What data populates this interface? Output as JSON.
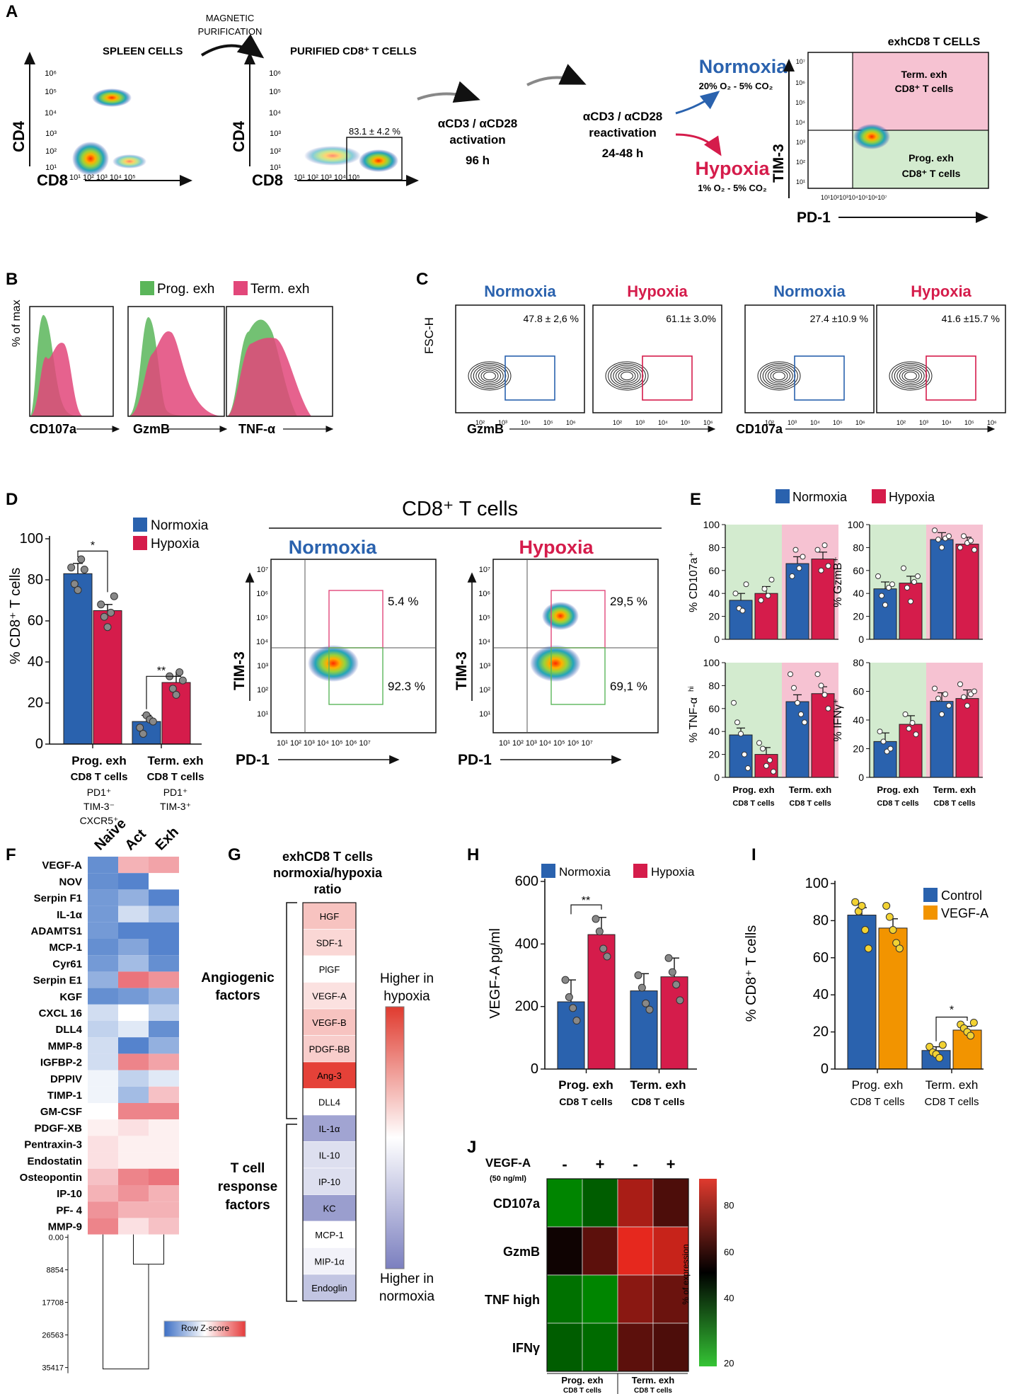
{
  "colors": {
    "normoxia": "#2a62ae",
    "hypoxia": "#d51c4b",
    "control": "#2a62ae",
    "vegfa": "#f29400",
    "prog_bg": "#d3ebcf",
    "term_bg": "#f6c2d2",
    "green": "#5bb65a",
    "pink": "#e2477a"
  },
  "panelA": {
    "letter": "A",
    "spleen_title": "SPLEEN CELLS",
    "arrow1": [
      "MAGNETIC",
      "PURIFICATION"
    ],
    "purified_title": "PURIFIED CD8⁺ T CELLS",
    "gate_pct": "83.1 ± 4.2 %",
    "x_axis": "CD8",
    "y_axis": "CD4",
    "ticks_x": "10¹ 10² 10³ 10⁴ 10⁵",
    "ticks_y": [
      "10⁶",
      "10⁵",
      "10⁴",
      "10³",
      "10²",
      "10¹"
    ],
    "step1": [
      "αCD3 / αCD28",
      "activation",
      "96 h"
    ],
    "step2": [
      "αCD3 / αCD28",
      "reactivation",
      "24-48 h"
    ],
    "normoxia": "Normoxia",
    "normoxia_cond": "20% O₂ - 5% CO₂",
    "hypoxia": "Hypoxia",
    "hypoxia_cond": "1% O₂ - 5% CO₂",
    "exh_title": "exhCD8 T CELLS",
    "term_label": [
      "Term. exh",
      "CD8⁺ T cells"
    ],
    "prog_label": [
      "Prog. exh",
      "CD8⁺ T cells"
    ],
    "exh_y": "TIM-3",
    "exh_x": "PD-1",
    "exh_ticks_y": [
      "10⁷",
      "10⁶",
      "10⁵",
      "10⁴",
      "10³",
      "10²",
      "10¹"
    ],
    "exh_ticks_x": "10¹10²10³10⁴10⁵10⁶10⁷"
  },
  "panelB": {
    "letter": "B",
    "legend": [
      "Prog. exh",
      "Term. exh"
    ],
    "y_axis": "% of max",
    "markers": [
      "CD107a",
      "GzmB",
      "TNF-α"
    ]
  },
  "panelC": {
    "letter": "C",
    "plots": [
      {
        "condition": "Normoxia",
        "pct": "47.8 ± 2,6 %"
      },
      {
        "condition": "Hypoxia",
        "pct": "61.1± 3.0%"
      },
      {
        "condition": "Normoxia",
        "pct": "27.4 ±10.9 %"
      },
      {
        "condition": "Hypoxia",
        "pct": "41.6 ±15.7 %"
      }
    ],
    "y_axis": "FSC-H",
    "x_left": "GzmB",
    "x_right": "CD107a",
    "ticks": [
      "10²",
      "10³",
      "10⁴",
      "10⁵",
      "10⁶"
    ]
  },
  "panelD": {
    "letter": "D",
    "legend": [
      "Normoxia",
      "Hypoxia"
    ],
    "y_axis": "% CD8⁺ T cells",
    "y_ticks": [
      "100",
      "80",
      "60",
      "40",
      "20",
      "0"
    ],
    "chart_data": {
      "type": "bar",
      "categories": [
        "Prog. exh",
        "Term. exh"
      ],
      "ylim": [
        0,
        100
      ],
      "series": [
        {
          "name": "Normoxia",
          "values": [
            83,
            11
          ],
          "points": [
            [
              86,
              78,
              75,
              90,
              85
            ],
            [
              8,
              5,
              14,
              12,
              11
            ]
          ]
        },
        {
          "name": "Hypoxia",
          "values": [
            65,
            30
          ],
          "points": [
            [
              68,
              62,
              57,
              64,
              72
            ],
            [
              33,
              27,
              24,
              35,
              31
            ]
          ]
        }
      ],
      "significance": [
        "*",
        "**"
      ]
    },
    "cat_labels": [
      {
        "name": "Prog. exh",
        "sub": "CD8 T cells",
        "pheno": [
          "PD1⁺",
          "TIM-3⁻",
          "CXCR5⁺"
        ]
      },
      {
        "name": "Term. exh",
        "sub": "CD8 T cells",
        "pheno": [
          "PD1⁺",
          "TIM-3⁺"
        ]
      }
    ],
    "flow_title": "CD8⁺ T cells",
    "flow_norm": "Normoxia",
    "flow_hyp": "Hypoxia",
    "norm_term": "5.4 %",
    "norm_prog": "92.3 %",
    "hyp_term": "29,5 %",
    "hyp_prog": "69,1 %",
    "flow_y": "TIM-3",
    "flow_x": "PD-1",
    "flow_ticks_y": [
      "10⁷",
      "10⁶",
      "10⁵",
      "10⁴",
      "10³",
      "10²",
      "10¹"
    ],
    "flow_ticks_x": "10¹ 10² 10³ 10⁴ 10⁵ 10⁶ 10⁷"
  },
  "panelE": {
    "letter": "E",
    "legend": [
      "Normoxia",
      "Hypoxia"
    ],
    "charts": [
      {
        "ylabel": "% CD107a⁺",
        "ylim": [
          0,
          100
        ],
        "values": [
          34,
          40,
          66,
          70
        ],
        "points": [
          [
            40,
            27,
            25,
            48
          ],
          [
            34,
            44,
            38,
            52
          ],
          [
            55,
            78,
            62,
            72
          ],
          [
            78,
            60,
            82,
            64
          ]
        ]
      },
      {
        "ylabel": "% GzmB⁺",
        "ylim": [
          0,
          100
        ],
        "values": [
          44,
          49,
          87,
          83
        ],
        "points": [
          [
            55,
            38,
            30,
            45,
            48
          ],
          [
            62,
            45,
            33,
            50,
            55
          ],
          [
            95,
            87,
            80,
            88,
            90
          ],
          [
            80,
            90,
            84,
            86,
            78
          ]
        ]
      },
      {
        "ylabel": "% TNF-α^hi",
        "ylim": [
          0,
          100
        ],
        "values": [
          37,
          20,
          66,
          73
        ],
        "points": [
          [
            65,
            48,
            38,
            20,
            8
          ],
          [
            30,
            25,
            10,
            15,
            5
          ],
          [
            90,
            78,
            65,
            55,
            48
          ],
          [
            90,
            80,
            72,
            60
          ]
        ]
      },
      {
        "ylabel": "% IFNγ⁺",
        "ylim": [
          0,
          80
        ],
        "values": [
          25,
          37,
          53,
          55
        ],
        "points": [
          [
            32,
            25,
            18,
            20
          ],
          [
            44,
            34,
            38,
            30
          ],
          [
            62,
            55,
            44,
            58,
            50
          ],
          [
            65,
            56,
            50,
            58,
            60
          ]
        ]
      }
    ],
    "cats": [
      "Prog. exh",
      "Term. exh"
    ],
    "cat_sub": "CD8 T cells"
  },
  "panelF": {
    "letter": "F",
    "columns": [
      "Naive",
      "Act",
      "Exh"
    ],
    "rows": [
      "VEGF-A",
      "NOV",
      "Serpin F1",
      "IL-1α",
      "ADAMTS1",
      "MCP-1",
      "Cyr61",
      "Serpin E1",
      "KGF",
      "CXCL 16",
      "DLL4",
      "MMP-8",
      "IGFBP-2",
      "DPPIV",
      "TIMP-1",
      "GM-CSF",
      "PDGF-XB",
      "Pentraxin-3",
      "Endostatin",
      "Osteopontin",
      "IP-10",
      "PF- 4",
      "MMP-9"
    ],
    "values": [
      [
        -1.0,
        0.5,
        0.6
      ],
      [
        -1.0,
        -1.1,
        0.0
      ],
      [
        -0.9,
        -0.7,
        -1.1
      ],
      [
        -0.9,
        -0.3,
        -0.6
      ],
      [
        -0.9,
        -1.1,
        -1.1
      ],
      [
        -1.0,
        -0.8,
        -1.1
      ],
      [
        -0.9,
        -0.6,
        -1.0
      ],
      [
        -0.7,
        0.9,
        0.7
      ],
      [
        -1.0,
        -0.9,
        -0.7
      ],
      [
        -0.3,
        0.0,
        -0.4
      ],
      [
        -0.4,
        -0.2,
        -1.0
      ],
      [
        -0.3,
        -1.1,
        -0.7
      ],
      [
        -0.3,
        0.8,
        0.6
      ],
      [
        -0.1,
        -0.4,
        -0.2
      ],
      [
        -0.1,
        -0.6,
        0.4
      ],
      [
        0.0,
        0.8,
        0.8
      ],
      [
        0.1,
        0.2,
        0.1
      ],
      [
        0.2,
        0.1,
        0.1
      ],
      [
        0.2,
        0.1,
        0.1
      ],
      [
        0.4,
        0.8,
        0.9
      ],
      [
        0.5,
        0.7,
        0.5
      ],
      [
        0.7,
        0.5,
        0.5
      ],
      [
        0.8,
        0.2,
        0.4
      ]
    ],
    "dendro_ticks": [
      "0.00",
      "8854",
      "17708",
      "26563",
      "35417"
    ],
    "scale_label": "Row Z-score"
  },
  "panelG": {
    "letter": "G",
    "title": [
      "exhCD8 T cells",
      "normoxia/hypoxia",
      "ratio"
    ],
    "items": [
      {
        "name": "HGF",
        "v": 0.3
      },
      {
        "name": "SDF-1",
        "v": 0.2
      },
      {
        "name": "PlGF",
        "v": 0.0
      },
      {
        "name": "VEGF-A",
        "v": 0.15
      },
      {
        "name": "VEGF-B",
        "v": 0.3
      },
      {
        "name": "PDGF-BB",
        "v": 0.25
      },
      {
        "name": "Ang-3",
        "v": 0.95
      },
      {
        "name": "DLL4",
        "v": 0.0
      },
      {
        "name": "IL-1α",
        "v": -0.7
      },
      {
        "name": "IL-10",
        "v": -0.25
      },
      {
        "name": "IP-10",
        "v": -0.25
      },
      {
        "name": "KC",
        "v": -0.75
      },
      {
        "name": "MCP-1",
        "v": 0.0
      },
      {
        "name": "MIP-1α",
        "v": -0.1
      },
      {
        "name": "Endoglin",
        "v": -0.45
      }
    ],
    "group1": [
      "Angiogenic",
      "factors"
    ],
    "group2": [
      "T cell",
      "response",
      "factors"
    ],
    "high_hyp": [
      "Higher in",
      "hypoxia"
    ],
    "high_norm": [
      "Higher in",
      "normoxia"
    ]
  },
  "panelH": {
    "letter": "H",
    "legend": [
      "Normoxia",
      "Hypoxia"
    ],
    "y_axis": "VEGF-A pg/ml",
    "y_ticks": [
      "600",
      "400",
      "200",
      "0"
    ],
    "chart_data": {
      "type": "bar",
      "categories": [
        "Prog. exh",
        "Term. exh"
      ],
      "ylim": [
        0,
        600
      ],
      "series": [
        {
          "name": "Normoxia",
          "values": [
            215,
            250
          ],
          "points": [
            [
              285,
              230,
              195,
              155
            ],
            [
              300,
              260,
              210,
              190
            ]
          ]
        },
        {
          "name": "Hypoxia",
          "values": [
            430,
            295
          ],
          "points": [
            [
              480,
              440,
              385,
              360
            ],
            [
              355,
              310,
              270,
              220
            ]
          ]
        }
      ],
      "significance": [
        "**"
      ]
    },
    "cats": [
      {
        "name": "Prog. exh",
        "sub": "CD8 T cells"
      },
      {
        "name": "Term. exh",
        "sub": "CD8 T cells"
      }
    ]
  },
  "panelI": {
    "letter": "I",
    "legend": [
      "Control",
      "VEGF-A"
    ],
    "y_axis": "% CD8⁺ T cells",
    "y_ticks": [
      "100",
      "80",
      "60",
      "40",
      "20",
      "0"
    ],
    "chart_data": {
      "type": "bar",
      "categories": [
        "Prog. exh",
        "Term. exh"
      ],
      "ylim": [
        0,
        100
      ],
      "series": [
        {
          "name": "Control",
          "values": [
            83,
            10
          ],
          "points": [
            [
              90,
              85,
              88,
              75,
              65
            ],
            [
              12,
              9,
              8,
              6,
              13
            ]
          ]
        },
        {
          "name": "VEGF-A",
          "values": [
            76,
            21
          ],
          "points": [
            [
              88,
              82,
              75,
              68,
              65
            ],
            [
              24,
              22,
              20,
              18,
              25
            ]
          ]
        }
      ],
      "significance": [
        "*"
      ]
    },
    "cats": [
      {
        "name": "Prog. exh",
        "sub": "CD8 T cells"
      },
      {
        "name": "Term. exh",
        "sub": "CD8 T cells"
      }
    ]
  },
  "panelJ": {
    "letter": "J",
    "treat_label": "VEGF-A",
    "treat_dose": "(50 ng/ml)",
    "signs": [
      "-",
      "+",
      "-",
      "+"
    ],
    "rows": [
      "CD107a",
      "GzmB",
      "TNF high",
      "IFNγ"
    ],
    "values": [
      [
        30,
        36,
        72,
        60
      ],
      [
        52,
        62,
        80,
        76
      ],
      [
        33,
        30,
        68,
        64
      ],
      [
        36,
        34,
        62,
        60
      ]
    ],
    "scale_ticks": [
      "80",
      "60",
      "40",
      "20"
    ],
    "scale_label": "% of expression",
    "cats": [
      {
        "name": "Prog. exh",
        "sub": "CD8 T cells"
      },
      {
        "name": "Term. exh",
        "sub": "CD8 T cells"
      }
    ]
  }
}
